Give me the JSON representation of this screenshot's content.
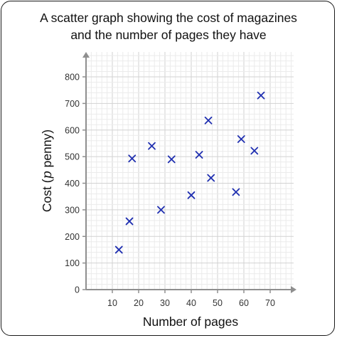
{
  "chart_data": {
    "type": "scatter",
    "title": "A scatter graph showing the cost of magazines",
    "subtitle": "and the number of pages they have",
    "xlabel": "Number of pages",
    "ylabel_pre": "Cost (",
    "ylabel_var": "p",
    "ylabel_post": " penny)",
    "xlim": [
      0,
      70
    ],
    "ylim": [
      0,
      800
    ],
    "xticks": [
      10,
      20,
      30,
      40,
      50,
      60,
      70
    ],
    "yticks": [
      0,
      100,
      200,
      300,
      400,
      500,
      600,
      700,
      800
    ],
    "grid": true,
    "marker": "x",
    "marker_color": "#1f2fb0",
    "points": [
      {
        "x": 12.5,
        "y": 150
      },
      {
        "x": 16.5,
        "y": 257
      },
      {
        "x": 17.5,
        "y": 493
      },
      {
        "x": 25,
        "y": 540
      },
      {
        "x": 28.5,
        "y": 300
      },
      {
        "x": 32.5,
        "y": 490
      },
      {
        "x": 40,
        "y": 355
      },
      {
        "x": 43,
        "y": 507
      },
      {
        "x": 46.5,
        "y": 636
      },
      {
        "x": 47.5,
        "y": 420
      },
      {
        "x": 57,
        "y": 367
      },
      {
        "x": 59,
        "y": 566
      },
      {
        "x": 64,
        "y": 522
      },
      {
        "x": 66.5,
        "y": 730
      }
    ]
  }
}
